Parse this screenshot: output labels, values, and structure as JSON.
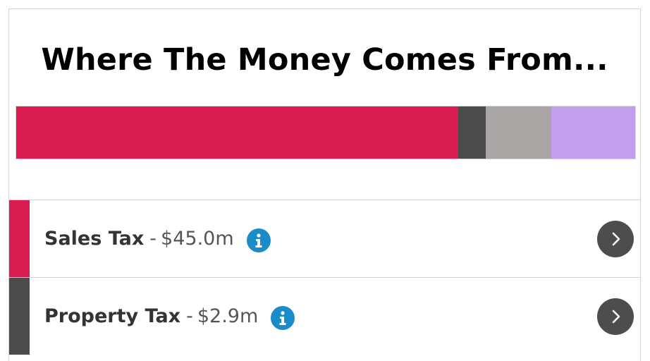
{
  "title": "Where The Money Comes From...",
  "bar": {
    "segments": [
      {
        "name": "sales-tax",
        "share": 0.714,
        "color": "#d81b50"
      },
      {
        "name": "property-tax",
        "share": 0.044,
        "color": "#4b4b4b"
      },
      {
        "name": "other-1",
        "share": 0.107,
        "color": "#aba6a6"
      },
      {
        "name": "other-2",
        "share": 0.135,
        "color": "#c29fec"
      }
    ]
  },
  "rows": [
    {
      "name": "Sales Tax",
      "separator": "-",
      "amount": "$45.0m",
      "color": "#d81b50",
      "info_icon": "info-icon",
      "chevron_icon": "chevron-right-icon"
    },
    {
      "name": "Property Tax",
      "separator": "-",
      "amount": "$2.9m",
      "color": "#4b4b4b",
      "info_icon": "info-icon",
      "chevron_icon": "chevron-right-icon"
    }
  ]
}
